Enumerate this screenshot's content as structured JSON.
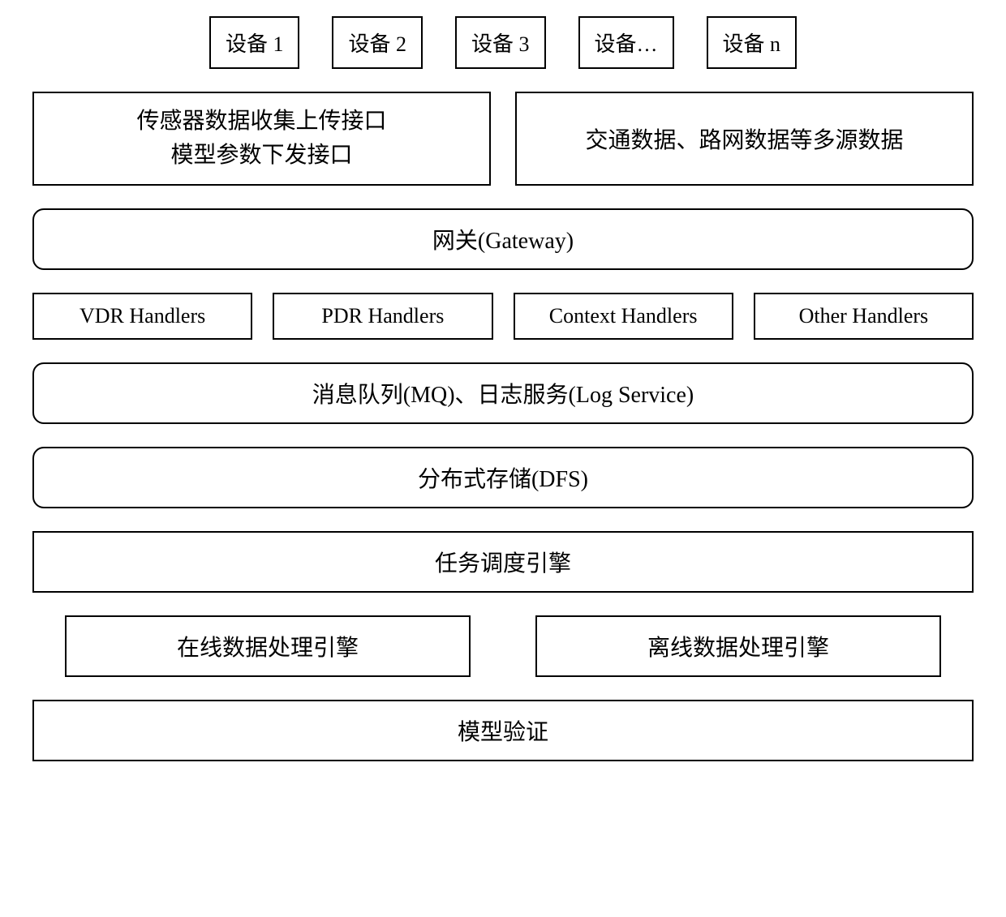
{
  "diagram": {
    "type": "architecture-diagram",
    "background_color": "#ffffff",
    "border_color": "#000000",
    "border_width": 2,
    "font_family": "SimSun, Times New Roman, serif",
    "font_size_device": 26,
    "font_size_box": 28,
    "gap_between_rows": 28,
    "devices": {
      "items": [
        {
          "label": "设备 1"
        },
        {
          "label": "设备 2"
        },
        {
          "label": "设备 3"
        },
        {
          "label": "设备…"
        },
        {
          "label": "设备 n"
        }
      ]
    },
    "interfaces": {
      "left": {
        "line1": "传感器数据收集上传接口",
        "line2": "模型参数下发接口"
      },
      "right": {
        "label": "交通数据、路网数据等多源数据"
      }
    },
    "gateway": {
      "label": "网关(Gateway)",
      "rounded": true,
      "border_radius": 14
    },
    "handlers": {
      "items": [
        {
          "label": "VDR Handlers"
        },
        {
          "label": "PDR Handlers"
        },
        {
          "label": "Context Handlers"
        },
        {
          "label": "Other Handlers"
        }
      ]
    },
    "mq_log": {
      "label": "消息队列(MQ)、日志服务(Log Service)",
      "rounded": true,
      "border_radius": 14
    },
    "dfs": {
      "label": "分布式存储(DFS)",
      "rounded": true,
      "border_radius": 14
    },
    "scheduler": {
      "label": "任务调度引擎",
      "rounded": false
    },
    "engines": {
      "online": {
        "label": "在线数据处理引擎"
      },
      "offline": {
        "label": "离线数据处理引擎"
      }
    },
    "validation": {
      "label": "模型验证",
      "rounded": false
    }
  }
}
